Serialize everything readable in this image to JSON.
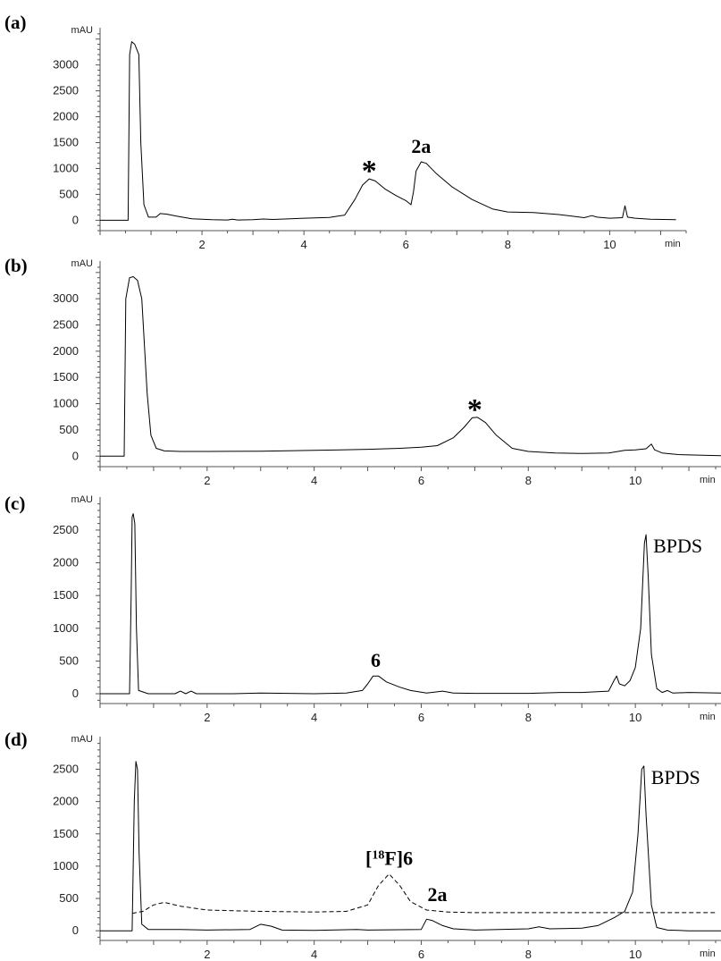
{
  "chart_data": [
    {
      "type": "line",
      "panel_label": "(a)",
      "ylabel": "mAU",
      "xlabel": "min",
      "xlim": [
        0,
        11.5
      ],
      "ylim": [
        -200,
        3650
      ],
      "xticks": [
        2,
        4,
        6,
        8,
        10
      ],
      "yticks": [
        0,
        500,
        1000,
        1500,
        2000,
        2500,
        3000
      ],
      "series": [
        {
          "style": "solid",
          "points": [
            [
              0,
              0
            ],
            [
              0.55,
              0
            ],
            [
              0.58,
              3200
            ],
            [
              0.62,
              3450
            ],
            [
              0.68,
              3400
            ],
            [
              0.72,
              3300
            ],
            [
              0.76,
              3200
            ],
            [
              0.8,
              1500
            ],
            [
              0.86,
              300
            ],
            [
              0.95,
              60
            ],
            [
              1.1,
              60
            ],
            [
              1.18,
              130
            ],
            [
              1.3,
              120
            ],
            [
              1.5,
              80
            ],
            [
              1.8,
              30
            ],
            [
              2.2,
              10
            ],
            [
              2.5,
              5
            ],
            [
              2.6,
              20
            ],
            [
              2.7,
              5
            ],
            [
              3.0,
              10
            ],
            [
              3.2,
              25
            ],
            [
              3.4,
              15
            ],
            [
              4.0,
              40
            ],
            [
              4.5,
              55
            ],
            [
              4.8,
              100
            ],
            [
              5.0,
              400
            ],
            [
              5.15,
              680
            ],
            [
              5.28,
              800
            ],
            [
              5.4,
              760
            ],
            [
              5.6,
              600
            ],
            [
              5.8,
              480
            ],
            [
              6.0,
              380
            ],
            [
              6.1,
              300
            ],
            [
              6.15,
              550
            ],
            [
              6.2,
              950
            ],
            [
              6.3,
              1130
            ],
            [
              6.4,
              1100
            ],
            [
              6.6,
              900
            ],
            [
              6.9,
              650
            ],
            [
              7.3,
              400
            ],
            [
              7.7,
              220
            ],
            [
              8.0,
              160
            ],
            [
              8.5,
              150
            ],
            [
              9.0,
              110
            ],
            [
              9.5,
              50
            ],
            [
              9.65,
              90
            ],
            [
              9.75,
              60
            ],
            [
              10.0,
              40
            ],
            [
              10.25,
              50
            ],
            [
              10.3,
              280
            ],
            [
              10.35,
              60
            ],
            [
              10.5,
              40
            ],
            [
              10.8,
              20
            ],
            [
              11.3,
              10
            ]
          ]
        }
      ],
      "annotations": [
        {
          "text": "*",
          "x": 5.28,
          "y": 800,
          "style": "star"
        },
        {
          "text": "2a",
          "x": 6.3,
          "y": 1130,
          "style": "bold"
        }
      ]
    },
    {
      "type": "line",
      "panel_label": "(b)",
      "ylabel": "mAU",
      "xlabel": "min",
      "xlim": [
        0,
        11.6
      ],
      "ylim": [
        -200,
        3650
      ],
      "xticks": [
        2,
        4,
        6,
        8,
        10
      ],
      "yticks": [
        0,
        500,
        1000,
        1500,
        2000,
        2500,
        3000
      ],
      "series": [
        {
          "style": "solid",
          "points": [
            [
              0,
              0
            ],
            [
              0.45,
              0
            ],
            [
              0.48,
              3000
            ],
            [
              0.55,
              3400
            ],
            [
              0.62,
              3420
            ],
            [
              0.7,
              3350
            ],
            [
              0.78,
              3000
            ],
            [
              0.88,
              1200
            ],
            [
              0.95,
              400
            ],
            [
              1.05,
              150
            ],
            [
              1.2,
              100
            ],
            [
              1.5,
              90
            ],
            [
              2.0,
              90
            ],
            [
              3.0,
              95
            ],
            [
              4.0,
              110
            ],
            [
              5.0,
              130
            ],
            [
              5.6,
              150
            ],
            [
              6.0,
              170
            ],
            [
              6.3,
              200
            ],
            [
              6.6,
              350
            ],
            [
              6.8,
              550
            ],
            [
              6.95,
              730
            ],
            [
              7.05,
              740
            ],
            [
              7.2,
              640
            ],
            [
              7.4,
              400
            ],
            [
              7.7,
              150
            ],
            [
              8.0,
              90
            ],
            [
              8.5,
              60
            ],
            [
              9.0,
              50
            ],
            [
              9.5,
              60
            ],
            [
              9.8,
              110
            ],
            [
              10.0,
              120
            ],
            [
              10.2,
              140
            ],
            [
              10.3,
              230
            ],
            [
              10.36,
              120
            ],
            [
              10.5,
              60
            ],
            [
              10.8,
              30
            ],
            [
              11.6,
              10
            ]
          ]
        }
      ],
      "annotations": [
        {
          "text": "*",
          "x": 7.0,
          "y": 740,
          "style": "star"
        }
      ]
    },
    {
      "type": "line",
      "panel_label": "(c)",
      "ylabel": "mAU",
      "xlabel": "min",
      "xlim": [
        0,
        11.6
      ],
      "ylim": [
        -150,
        2950
      ],
      "xticks": [
        2,
        4,
        6,
        8,
        10
      ],
      "yticks": [
        0,
        500,
        1000,
        1500,
        2000,
        2500
      ],
      "series": [
        {
          "style": "solid",
          "points": [
            [
              0,
              0
            ],
            [
              0.55,
              0
            ],
            [
              0.58,
              1500
            ],
            [
              0.6,
              2700
            ],
            [
              0.62,
              2750
            ],
            [
              0.65,
              2600
            ],
            [
              0.68,
              1000
            ],
            [
              0.72,
              50
            ],
            [
              0.9,
              0
            ],
            [
              1.4,
              0
            ],
            [
              1.5,
              40
            ],
            [
              1.6,
              0
            ],
            [
              1.7,
              40
            ],
            [
              1.8,
              0
            ],
            [
              2.5,
              0
            ],
            [
              3.0,
              10
            ],
            [
              4.0,
              0
            ],
            [
              4.6,
              10
            ],
            [
              4.9,
              50
            ],
            [
              5.0,
              150
            ],
            [
              5.1,
              270
            ],
            [
              5.2,
              270
            ],
            [
              5.35,
              180
            ],
            [
              5.6,
              100
            ],
            [
              5.8,
              50
            ],
            [
              6.1,
              10
            ],
            [
              6.4,
              40
            ],
            [
              6.6,
              10
            ],
            [
              7.0,
              5
            ],
            [
              8.0,
              5
            ],
            [
              8.6,
              20
            ],
            [
              9.0,
              20
            ],
            [
              9.5,
              40
            ],
            [
              9.6,
              200
            ],
            [
              9.65,
              270
            ],
            [
              9.7,
              150
            ],
            [
              9.8,
              120
            ],
            [
              9.9,
              200
            ],
            [
              10.0,
              400
            ],
            [
              10.1,
              1000
            ],
            [
              10.17,
              2300
            ],
            [
              10.2,
              2430
            ],
            [
              10.24,
              1800
            ],
            [
              10.3,
              600
            ],
            [
              10.4,
              80
            ],
            [
              10.5,
              20
            ],
            [
              10.6,
              50
            ],
            [
              10.7,
              10
            ],
            [
              11.0,
              20
            ],
            [
              11.6,
              10
            ]
          ]
        }
      ],
      "annotations": [
        {
          "text": "6",
          "x": 5.15,
          "y": 270,
          "style": "bold"
        },
        {
          "text": "BPDS",
          "x": 10.2,
          "y": 2430,
          "style": "plain"
        }
      ]
    },
    {
      "type": "line",
      "panel_label": "(d)",
      "ylabel": "mAU",
      "xlabel": "min",
      "xlim": [
        0,
        11.6
      ],
      "ylim": [
        -150,
        2950
      ],
      "xticks": [
        2,
        4,
        6,
        8,
        10
      ],
      "yticks": [
        0,
        500,
        1000,
        1500,
        2000,
        2500
      ],
      "series": [
        {
          "style": "solid",
          "points": [
            [
              0,
              0
            ],
            [
              0.6,
              0
            ],
            [
              0.64,
              2000
            ],
            [
              0.67,
              2620
            ],
            [
              0.7,
              2500
            ],
            [
              0.73,
              1200
            ],
            [
              0.78,
              100
            ],
            [
              0.9,
              20
            ],
            [
              1.5,
              20
            ],
            [
              2.0,
              10
            ],
            [
              2.8,
              20
            ],
            [
              3.0,
              100
            ],
            [
              3.2,
              70
            ],
            [
              3.4,
              10
            ],
            [
              4.0,
              5
            ],
            [
              4.8,
              20
            ],
            [
              5.0,
              10
            ],
            [
              6.0,
              20
            ],
            [
              6.1,
              180
            ],
            [
              6.2,
              160
            ],
            [
              6.4,
              80
            ],
            [
              6.6,
              30
            ],
            [
              7.0,
              10
            ],
            [
              8.0,
              30
            ],
            [
              8.2,
              60
            ],
            [
              8.4,
              30
            ],
            [
              9.0,
              40
            ],
            [
              9.3,
              80
            ],
            [
              9.6,
              200
            ],
            [
              9.8,
              300
            ],
            [
              9.95,
              600
            ],
            [
              10.05,
              1500
            ],
            [
              10.12,
              2500
            ],
            [
              10.16,
              2550
            ],
            [
              10.2,
              1800
            ],
            [
              10.3,
              400
            ],
            [
              10.4,
              50
            ],
            [
              10.6,
              10
            ],
            [
              11.0,
              0
            ],
            [
              11.6,
              0
            ]
          ]
        },
        {
          "style": "dashed",
          "points": [
            [
              0.6,
              270
            ],
            [
              0.8,
              300
            ],
            [
              1.0,
              400
            ],
            [
              1.2,
              440
            ],
            [
              1.5,
              380
            ],
            [
              2.0,
              320
            ],
            [
              3.0,
              300
            ],
            [
              4.0,
              290
            ],
            [
              4.6,
              300
            ],
            [
              5.0,
              400
            ],
            [
              5.2,
              700
            ],
            [
              5.4,
              880
            ],
            [
              5.6,
              700
            ],
            [
              5.8,
              450
            ],
            [
              6.1,
              320
            ],
            [
              6.5,
              290
            ],
            [
              7.0,
              280
            ],
            [
              8.0,
              280
            ],
            [
              9.0,
              280
            ],
            [
              10.0,
              280
            ],
            [
              10.5,
              280
            ],
            [
              11.5,
              280
            ]
          ]
        }
      ],
      "annotations": [
        {
          "text": "[18F]6",
          "x": 5.4,
          "y": 880,
          "style": "bold"
        },
        {
          "text": "2a",
          "x": 6.3,
          "y": 320,
          "style": "bold"
        },
        {
          "text": "BPDS",
          "x": 10.16,
          "y": 2550,
          "style": "plain"
        }
      ]
    }
  ]
}
